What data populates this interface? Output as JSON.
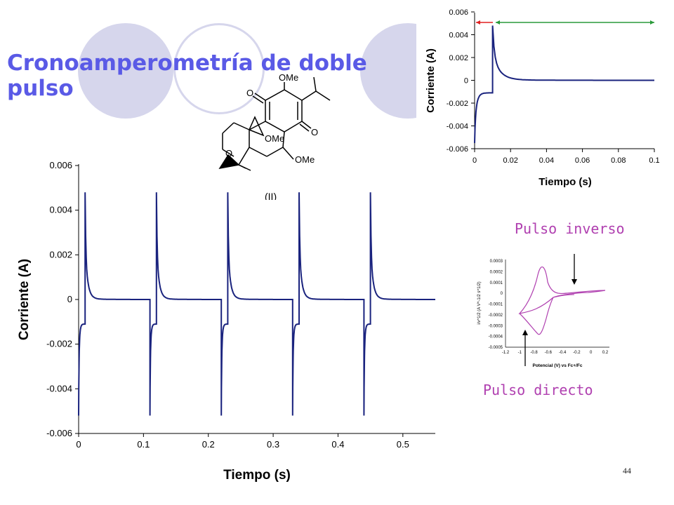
{
  "slide": {
    "title": "Cronoamperometría de doble pulso",
    "page_number": "44",
    "molecule": {
      "compound_label": "(II)",
      "atom_labels": [
        "OMe",
        "O",
        "O",
        "O",
        "OMe",
        "OMe"
      ]
    },
    "annotations": {
      "reverse_pulse": "Pulso inverso",
      "forward_pulse": "Pulso directo"
    },
    "colors": {
      "title": "#5a5ae6",
      "trace": "#1a237e",
      "cv_trace": "#b040b0",
      "annotation": "#b040b0",
      "decor_circle": "#d6d6ec",
      "forward_arrow": "#e02020",
      "reverse_arrow": "#2a9a3a"
    },
    "cv_inset": {
      "y_label": "i/v^1/2 (A V^-1/2 s^1/2)",
      "x_label": "Potencial (V) vs Fc+/Fc",
      "y_ticks": [
        "0.0003",
        "0.0002",
        "0.0001",
        "0",
        "-0.0001",
        "-0.0002",
        "-0.0003",
        "-0.0004",
        "-0.0005"
      ],
      "x_ticks": [
        "-1.2",
        "-1",
        "-0.8",
        "-0.6",
        "-0.4",
        "-0.2",
        "0",
        "0.2"
      ]
    }
  },
  "chart_data": [
    {
      "type": "line",
      "xlabel": "Tiempo (s)",
      "ylabel": "Corriente (A)",
      "xlim": [
        0,
        0.55
      ],
      "ylim": [
        -0.006,
        0.006
      ],
      "x_ticks": [
        "0",
        "0.1",
        "0.2",
        "0.3",
        "0.4",
        "0.5"
      ],
      "y_ticks": [
        "0.006",
        "0.004",
        "0.002",
        "0",
        "-0.002",
        "-0.004",
        "-0.006"
      ],
      "grid": false,
      "cycle_period_s": 0.11,
      "forward_step_start_s": [
        0,
        0.11,
        0.22,
        0.33,
        0.44
      ],
      "reverse_step_s": [
        0.01,
        0.12,
        0.23,
        0.34,
        0.45
      ],
      "forward_peak_current_A": -0.0052,
      "reverse_peak_current_A": 0.0048,
      "current_before_reverse_step_A": -0.0011,
      "steady_state_current_A": 0.0
    },
    {
      "type": "line",
      "xlabel": "Tiempo (s)",
      "ylabel": "Corriente (A)",
      "xlim": [
        0,
        0.1
      ],
      "ylim": [
        -0.006,
        0.006
      ],
      "x_ticks": [
        "0",
        "0.02",
        "0.04",
        "0.06",
        "0.08",
        "0.1"
      ],
      "y_ticks": [
        "0.006",
        "0.004",
        "0.002",
        "0",
        "-0.002",
        "-0.004",
        "-0.006"
      ],
      "grid": false,
      "forward_step_start_s": [
        0
      ],
      "reverse_step_s": [
        0.01
      ],
      "forward_peak_current_A": -0.0055,
      "reverse_peak_current_A": 0.0048,
      "current_before_reverse_step_A": -0.0011,
      "steady_state_current_A": 0.0
    }
  ]
}
